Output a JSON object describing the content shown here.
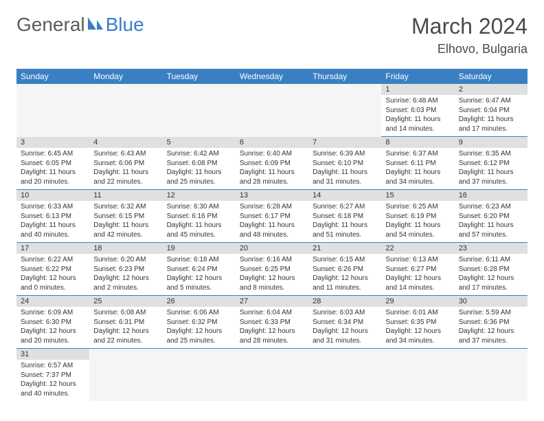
{
  "logo": {
    "part1": "General",
    "part2": "Blue"
  },
  "title": "March 2024",
  "location": "Elhovo, Bulgaria",
  "colors": {
    "header_bg": "#3a7fc4",
    "daynum_bg": "#e0e0e0",
    "rule": "#3a7fc4",
    "logo_gray": "#5b5b5b",
    "logo_blue": "#3a7fc4"
  },
  "days_of_week": [
    "Sunday",
    "Monday",
    "Tuesday",
    "Wednesday",
    "Thursday",
    "Friday",
    "Saturday"
  ],
  "weeks": [
    [
      null,
      null,
      null,
      null,
      null,
      {
        "n": "1",
        "sr": "6:48 AM",
        "ss": "6:03 PM",
        "dl": "11 hours and 14 minutes."
      },
      {
        "n": "2",
        "sr": "6:47 AM",
        "ss": "6:04 PM",
        "dl": "11 hours and 17 minutes."
      }
    ],
    [
      {
        "n": "3",
        "sr": "6:45 AM",
        "ss": "6:05 PM",
        "dl": "11 hours and 20 minutes."
      },
      {
        "n": "4",
        "sr": "6:43 AM",
        "ss": "6:06 PM",
        "dl": "11 hours and 22 minutes."
      },
      {
        "n": "5",
        "sr": "6:42 AM",
        "ss": "6:08 PM",
        "dl": "11 hours and 25 minutes."
      },
      {
        "n": "6",
        "sr": "6:40 AM",
        "ss": "6:09 PM",
        "dl": "11 hours and 28 minutes."
      },
      {
        "n": "7",
        "sr": "6:39 AM",
        "ss": "6:10 PM",
        "dl": "11 hours and 31 minutes."
      },
      {
        "n": "8",
        "sr": "6:37 AM",
        "ss": "6:11 PM",
        "dl": "11 hours and 34 minutes."
      },
      {
        "n": "9",
        "sr": "6:35 AM",
        "ss": "6:12 PM",
        "dl": "11 hours and 37 minutes."
      }
    ],
    [
      {
        "n": "10",
        "sr": "6:33 AM",
        "ss": "6:13 PM",
        "dl": "11 hours and 40 minutes."
      },
      {
        "n": "11",
        "sr": "6:32 AM",
        "ss": "6:15 PM",
        "dl": "11 hours and 42 minutes."
      },
      {
        "n": "12",
        "sr": "6:30 AM",
        "ss": "6:16 PM",
        "dl": "11 hours and 45 minutes."
      },
      {
        "n": "13",
        "sr": "6:28 AM",
        "ss": "6:17 PM",
        "dl": "11 hours and 48 minutes."
      },
      {
        "n": "14",
        "sr": "6:27 AM",
        "ss": "6:18 PM",
        "dl": "11 hours and 51 minutes."
      },
      {
        "n": "15",
        "sr": "6:25 AM",
        "ss": "6:19 PM",
        "dl": "11 hours and 54 minutes."
      },
      {
        "n": "16",
        "sr": "6:23 AM",
        "ss": "6:20 PM",
        "dl": "11 hours and 57 minutes."
      }
    ],
    [
      {
        "n": "17",
        "sr": "6:22 AM",
        "ss": "6:22 PM",
        "dl": "12 hours and 0 minutes."
      },
      {
        "n": "18",
        "sr": "6:20 AM",
        "ss": "6:23 PM",
        "dl": "12 hours and 2 minutes."
      },
      {
        "n": "19",
        "sr": "6:18 AM",
        "ss": "6:24 PM",
        "dl": "12 hours and 5 minutes."
      },
      {
        "n": "20",
        "sr": "6:16 AM",
        "ss": "6:25 PM",
        "dl": "12 hours and 8 minutes."
      },
      {
        "n": "21",
        "sr": "6:15 AM",
        "ss": "6:26 PM",
        "dl": "12 hours and 11 minutes."
      },
      {
        "n": "22",
        "sr": "6:13 AM",
        "ss": "6:27 PM",
        "dl": "12 hours and 14 minutes."
      },
      {
        "n": "23",
        "sr": "6:11 AM",
        "ss": "6:28 PM",
        "dl": "12 hours and 17 minutes."
      }
    ],
    [
      {
        "n": "24",
        "sr": "6:09 AM",
        "ss": "6:30 PM",
        "dl": "12 hours and 20 minutes."
      },
      {
        "n": "25",
        "sr": "6:08 AM",
        "ss": "6:31 PM",
        "dl": "12 hours and 22 minutes."
      },
      {
        "n": "26",
        "sr": "6:06 AM",
        "ss": "6:32 PM",
        "dl": "12 hours and 25 minutes."
      },
      {
        "n": "27",
        "sr": "6:04 AM",
        "ss": "6:33 PM",
        "dl": "12 hours and 28 minutes."
      },
      {
        "n": "28",
        "sr": "6:03 AM",
        "ss": "6:34 PM",
        "dl": "12 hours and 31 minutes."
      },
      {
        "n": "29",
        "sr": "6:01 AM",
        "ss": "6:35 PM",
        "dl": "12 hours and 34 minutes."
      },
      {
        "n": "30",
        "sr": "5:59 AM",
        "ss": "6:36 PM",
        "dl": "12 hours and 37 minutes."
      }
    ],
    [
      {
        "n": "31",
        "sr": "6:57 AM",
        "ss": "7:37 PM",
        "dl": "12 hours and 40 minutes."
      },
      null,
      null,
      null,
      null,
      null,
      null
    ]
  ],
  "labels": {
    "sunrise": "Sunrise: ",
    "sunset": "Sunset: ",
    "daylight": "Daylight: "
  }
}
